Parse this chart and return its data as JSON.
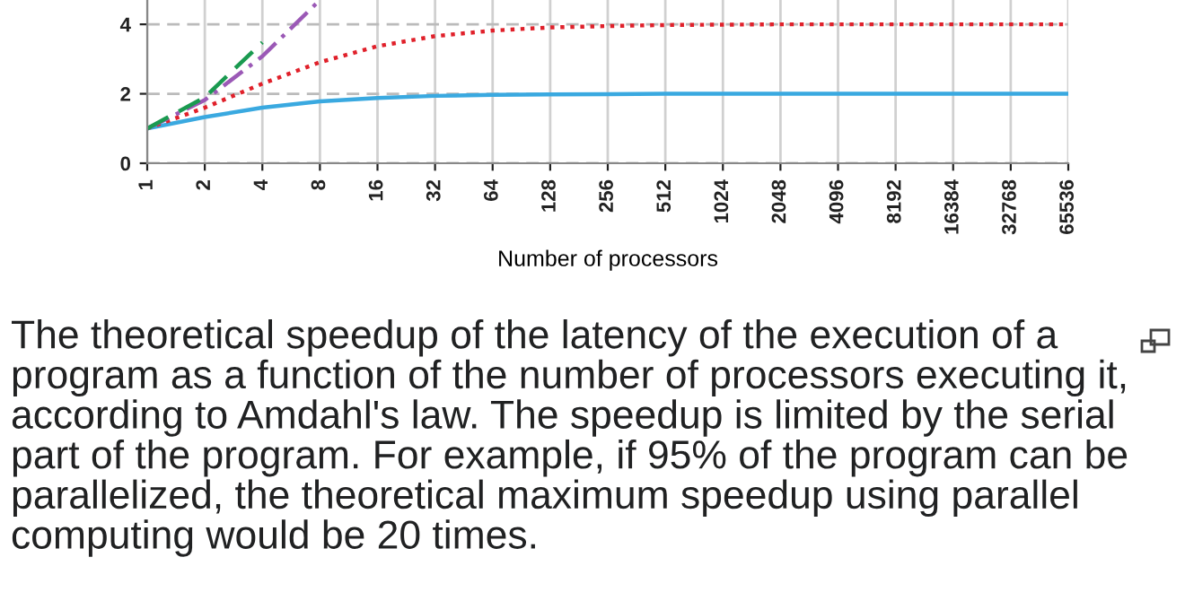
{
  "chart_data": {
    "type": "line",
    "xlabel": "Number of processors",
    "categories": [
      "1",
      "2",
      "4",
      "8",
      "16",
      "32",
      "64",
      "128",
      "256",
      "512",
      "1024",
      "2048",
      "4096",
      "8192",
      "16384",
      "32768",
      "65536"
    ],
    "series": [
      {
        "color": "#3aa9e0",
        "line_style": "solid",
        "values": [
          1,
          1.33,
          1.6,
          1.78,
          1.88,
          1.94,
          1.97,
          1.98,
          1.99,
          2,
          2,
          2,
          2,
          2,
          2,
          2,
          2
        ]
      },
      {
        "color": "#e0202a",
        "line_style": "dotted",
        "values": [
          1,
          1.6,
          2.29,
          2.91,
          3.37,
          3.66,
          3.82,
          3.91,
          3.95,
          3.98,
          3.99,
          4,
          4,
          4,
          4,
          4,
          4
        ]
      },
      {
        "color": "#9b59b6",
        "line_style": "dashdot",
        "values": [
          1,
          1.82,
          3.08,
          4.7,
          null,
          null,
          null,
          null,
          null,
          null,
          null,
          null,
          null,
          null,
          null,
          null,
          null
        ]
      },
      {
        "color": "#1a9a50",
        "line_style": "dashed",
        "values": [
          1,
          1.9,
          3.48,
          null,
          null,
          null,
          null,
          null,
          null,
          null,
          null,
          null,
          null,
          null,
          null,
          null,
          null
        ]
      }
    ],
    "ylim": [
      0,
      4.7
    ],
    "yticks": [
      0,
      2,
      4
    ],
    "grid": true,
    "marker": "none",
    "annotations": [
      "The theoretical speedup of the latency of the execution of a program as a function of the number of processors executing it, according to Amdahl's law. The speedup is limited by the serial part of the program. For example, if 95% of the program can be parallelized, the theoretical maximum speedup using parallel computing would be 20 times."
    ]
  }
}
